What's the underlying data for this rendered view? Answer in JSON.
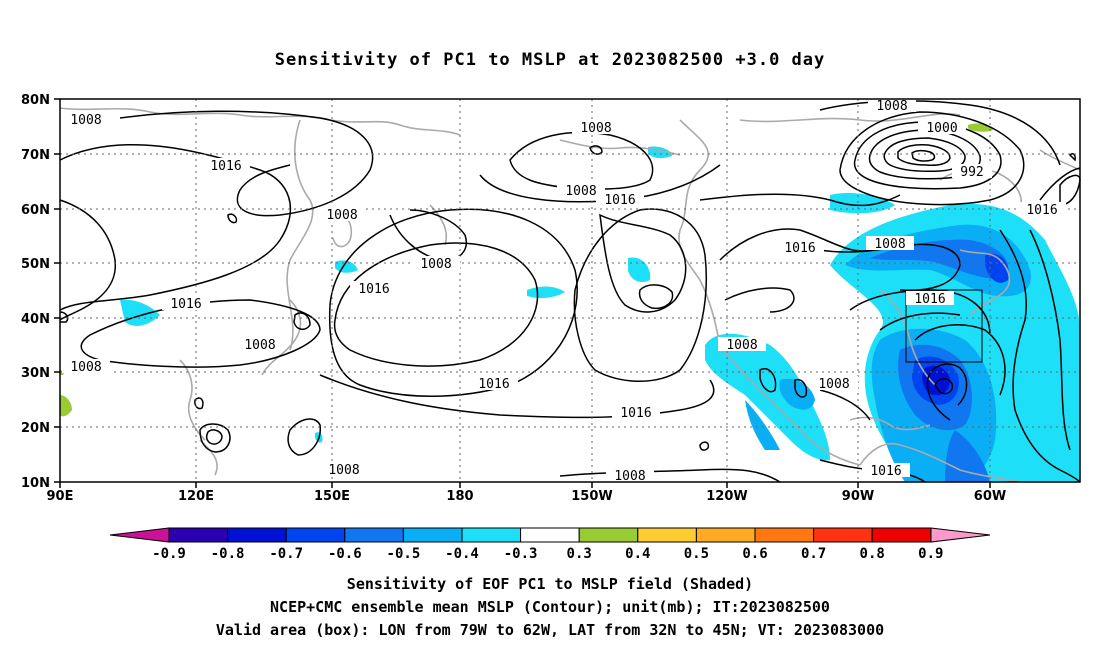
{
  "title": "Sensitivity of PC1 to MSLP at 2023082500 +3.0 day",
  "map": {
    "lat_labels": [
      "80N",
      "70N",
      "60N",
      "50N",
      "40N",
      "30N",
      "20N",
      "10N"
    ],
    "lon_labels": [
      "90E",
      "120E",
      "150E",
      "180",
      "150W",
      "120W",
      "90W",
      "60W"
    ],
    "contour_labels": [
      "1008",
      "1008",
      "1016",
      "1008",
      "1016",
      "1008",
      "1016",
      "1016",
      "1008",
      "1016",
      "1016",
      "1008",
      "1008",
      "1008",
      "1016",
      "1016",
      "1008",
      "1008",
      "1000",
      "992",
      "1008",
      "1016",
      "1008",
      "1016",
      "1008",
      "1008",
      "1008",
      "1016",
      "1008",
      "1016"
    ],
    "valid_box": {
      "lon_range": [
        "79W",
        "62W"
      ],
      "lat_range": [
        "32N",
        "45N"
      ]
    }
  },
  "colorbar": {
    "labels": [
      "-0.9",
      "-0.8",
      "-0.7",
      "-0.6",
      "-0.5",
      "-0.4",
      "-0.3",
      "0.3",
      "0.4",
      "0.5",
      "0.6",
      "0.7",
      "0.8",
      "0.9"
    ],
    "colors": [
      "#2a00b0",
      "#0011d6",
      "#0044f0",
      "#1177f0",
      "#0aaef5",
      "#1ddff8",
      "#ffffff",
      "#99cc33",
      "#ffcc33",
      "#ffaa22",
      "#ff7711",
      "#ff3311",
      "#ee0000"
    ],
    "low_arrow_color": "#cc1199",
    "high_arrow_color": "#ff99cc"
  },
  "captions": {
    "line1": "Sensitivity of EOF PC1 to MSLP field (Shaded)",
    "line2": "NCEP+CMC ensemble mean MSLP (Contour); unit(mb); IT:2023082500",
    "line3": "Valid area (box): LON from 79W to 62W, LAT from 32N to 45N; VT: 2023083000"
  }
}
